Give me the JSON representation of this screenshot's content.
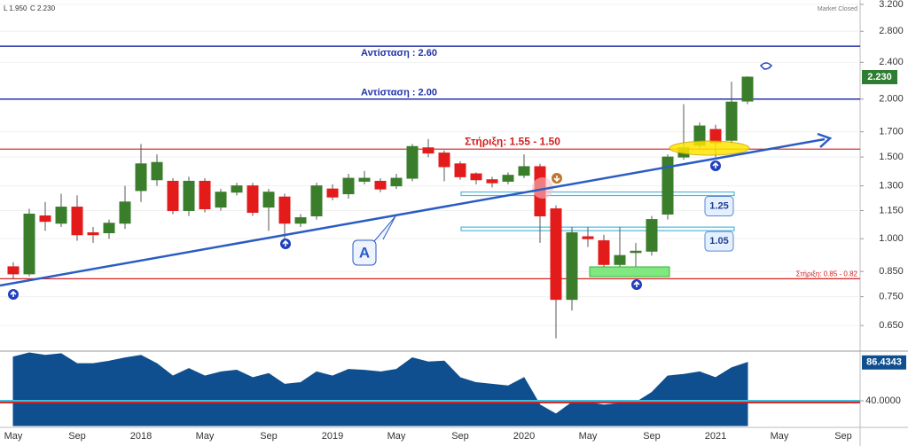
{
  "chart_data": {
    "type": "candlestick",
    "header": [
      "L 1.950",
      "C 2.230"
    ],
    "status": "Market Closed",
    "categories": [
      "May",
      null,
      null,
      null,
      "Sep",
      null,
      null,
      null,
      "2018",
      null,
      null,
      null,
      "May",
      null,
      null,
      null,
      "Sep",
      null,
      null,
      null,
      "2019",
      null,
      null,
      null,
      "May",
      null,
      null,
      null,
      "Sep",
      null,
      null,
      null,
      "2020",
      null,
      null,
      null,
      "May",
      null,
      null,
      null,
      "Sep",
      null,
      null,
      null,
      "2021",
      null,
      null,
      null,
      "May",
      null,
      null,
      null,
      "Sep",
      null
    ],
    "open": [
      0.87,
      0.84,
      1.12,
      1.08,
      1.17,
      1.03,
      1.03,
      1.08,
      1.27,
      1.34,
      1.33,
      1.15,
      1.33,
      1.17,
      1.26,
      1.3,
      1.17,
      1.23,
      1.08,
      1.12,
      1.28,
      1.25,
      1.33,
      1.33,
      1.3,
      1.35,
      1.57,
      1.53,
      1.45,
      1.38,
      1.34,
      1.33,
      1.37,
      1.43,
      1.16,
      0.74,
      1.01,
      0.99,
      0.88,
      0.94,
      0.94,
      1.13,
      1.5,
      1.59,
      1.72,
      1.63,
      1.98,
      null,
      null,
      null,
      null,
      null,
      null,
      null
    ],
    "high": [
      0.89,
      1.16,
      1.2,
      1.25,
      1.24,
      1.06,
      1.1,
      1.3,
      1.6,
      1.52,
      1.35,
      1.36,
      1.35,
      1.28,
      1.32,
      1.32,
      1.28,
      1.25,
      1.13,
      1.32,
      1.31,
      1.38,
      1.4,
      1.35,
      1.38,
      1.6,
      1.64,
      1.55,
      1.47,
      1.39,
      1.36,
      1.39,
      1.52,
      1.45,
      1.18,
      1.06,
      1.06,
      1.02,
      1.06,
      0.98,
      1.12,
      1.52,
      1.95,
      1.78,
      1.76,
      2.18,
      2.24,
      null,
      null,
      null,
      null,
      null,
      null,
      null
    ],
    "low": [
      0.82,
      0.83,
      1.04,
      1.06,
      0.99,
      0.98,
      1.0,
      1.05,
      1.2,
      1.3,
      1.13,
      1.12,
      1.14,
      1.15,
      1.24,
      1.12,
      1.04,
      0.98,
      1.06,
      1.1,
      1.21,
      1.22,
      1.31,
      1.26,
      1.28,
      1.33,
      1.5,
      1.33,
      1.34,
      1.31,
      1.29,
      1.31,
      1.35,
      0.98,
      0.61,
      0.7,
      0.96,
      0.86,
      0.86,
      0.86,
      0.92,
      1.1,
      1.48,
      1.56,
      1.5,
      1.6,
      1.95,
      null,
      null,
      null,
      null,
      null,
      null,
      null
    ],
    "close": [
      0.84,
      1.13,
      1.09,
      1.17,
      1.02,
      1.02,
      1.08,
      1.2,
      1.45,
      1.46,
      1.15,
      1.33,
      1.16,
      1.26,
      1.3,
      1.14,
      1.26,
      1.08,
      1.11,
      1.3,
      1.23,
      1.35,
      1.35,
      1.28,
      1.35,
      1.58,
      1.53,
      1.43,
      1.36,
      1.34,
      1.32,
      1.37,
      1.43,
      1.12,
      0.74,
      1.03,
      1.0,
      0.88,
      0.92,
      0.94,
      1.1,
      1.5,
      1.57,
      1.75,
      1.61,
      1.97,
      2.23,
      null,
      null,
      null,
      null,
      null,
      null,
      null
    ],
    "up_color": "#3a7d2a",
    "down_color": "#e31b1b",
    "log_scale": true,
    "ylim": [
      0.575,
      3.27
    ],
    "yticks": [
      {
        "value": 3.2,
        "label": "3.200"
      },
      {
        "value": 2.8,
        "label": "2.800"
      },
      {
        "value": 2.4,
        "label": "2.400"
      },
      {
        "value": 2.0,
        "label": "2.000"
      },
      {
        "value": 1.7,
        "label": "1.700"
      },
      {
        "value": 1.5,
        "label": "1.500"
      },
      {
        "value": 1.3,
        "label": "1.300"
      },
      {
        "value": 1.15,
        "label": "1.150"
      },
      {
        "value": 1.0,
        "label": "1.000"
      },
      {
        "value": 0.85,
        "label": "0.850"
      },
      {
        "value": 0.75,
        "label": "0.750"
      },
      {
        "value": 0.65,
        "label": "0.650"
      }
    ],
    "price_tag": {
      "value": 2.23,
      "label": "2.230"
    },
    "levels": [
      {
        "value": 2.6,
        "label": "Αντίσταση : 2.60",
        "color": "#2233aa"
      },
      {
        "value": 2.0,
        "label": "Αντίσταση : 2.00",
        "color": "#2233aa"
      },
      {
        "value": 1.56,
        "label": "Στήριξη: 1.55 - 1.50",
        "color": "#d42020"
      },
      {
        "value": 0.82,
        "label": "Στήριξη: 0.85 - 0.82",
        "color": "#d42020"
      }
    ],
    "zones": [
      {
        "value": 1.25,
        "color": "#4fb8d8"
      },
      {
        "value": 1.05,
        "color": "#4fb8d8"
      }
    ],
    "trend_label": "A",
    "indicator": {
      "type": "area",
      "color": "#0f4f8f",
      "values": [
        93,
        98,
        95,
        97,
        85,
        85,
        88,
        92,
        95,
        85,
        70,
        79,
        70,
        75,
        77,
        68,
        73,
        60,
        62,
        75,
        70,
        78,
        77,
        75,
        78,
        92,
        87,
        88,
        68,
        62,
        60,
        58,
        68,
        35,
        24,
        38,
        38,
        35,
        37,
        38,
        50,
        70,
        72,
        75,
        68,
        80,
        86.4343,
        null,
        null,
        null,
        null,
        null,
        null,
        null
      ],
      "ylim": [
        10,
        98
      ],
      "yticks": [
        {
          "value": 40,
          "label": "40.0000"
        }
      ],
      "tag": {
        "value": 86.4343,
        "label": "86.4343"
      },
      "levels": [
        {
          "value": 40,
          "color": "#3cc0e0"
        },
        {
          "value": 38,
          "color": "#d42020"
        }
      ]
    }
  }
}
